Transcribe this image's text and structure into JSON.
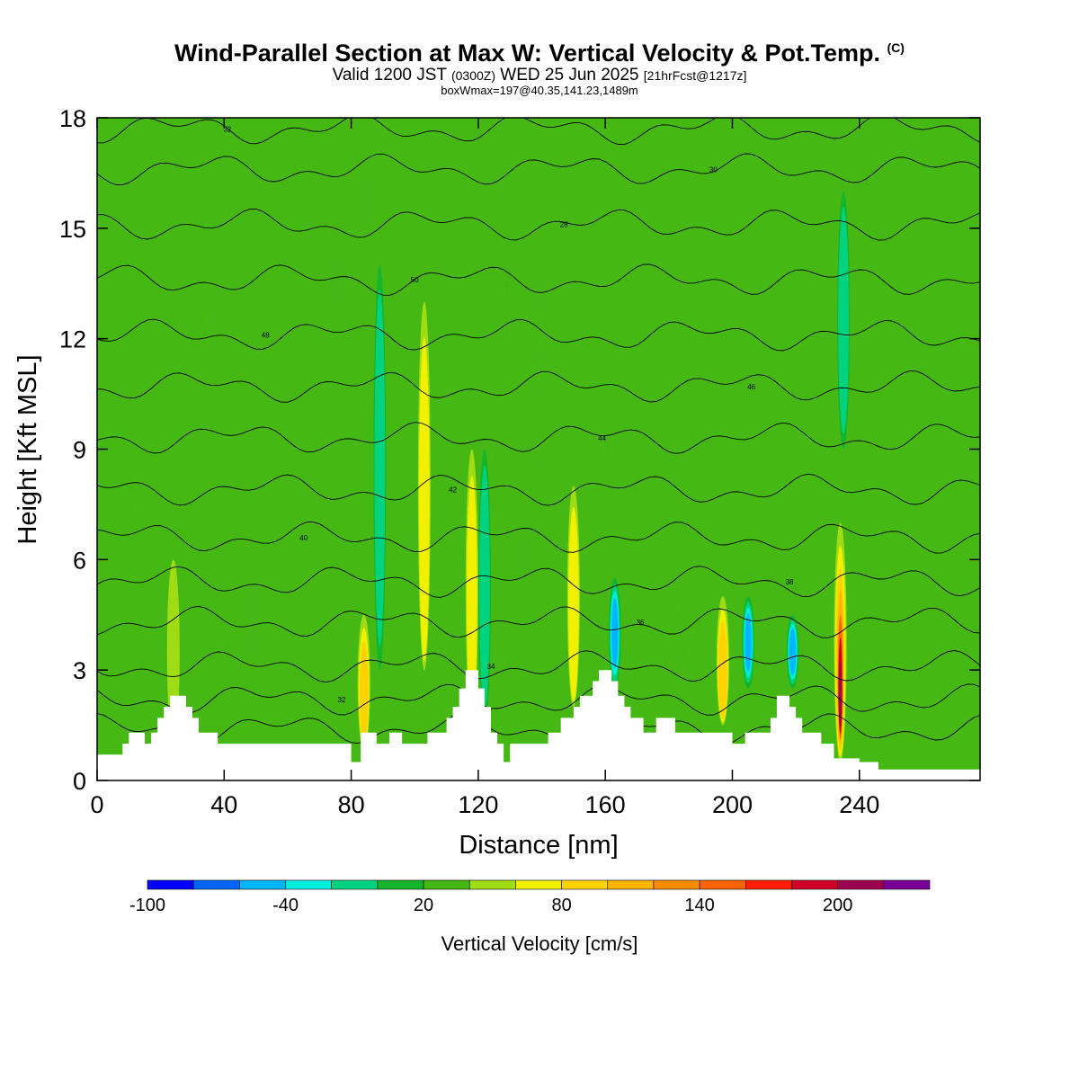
{
  "header": {
    "title": "Wind-Parallel Section at Max W: Vertical Velocity & Pot.Temp.",
    "copyright": "(C)",
    "valid_prefix": "Valid 1200 JST",
    "valid_utc": "(0300Z)",
    "valid_date": "WED 25 Jun 2025",
    "forecast": "[21hrFcst@1217z]",
    "box_info": "boxWmax=197@40.35,141.23,1489m"
  },
  "chart_data": {
    "type": "heatmap",
    "xlabel": "Distance [nm]",
    "ylabel": "Height [Kft MSL]",
    "xlim": [
      0,
      278
    ],
    "ylim": [
      0,
      18
    ],
    "x_ticks": [
      "0",
      "40",
      "80",
      "120",
      "160",
      "200",
      "240"
    ],
    "x_tick_values": [
      0,
      40,
      80,
      120,
      160,
      200,
      240
    ],
    "y_ticks": [
      "0",
      "3",
      "6",
      "9",
      "12",
      "15",
      "18"
    ],
    "y_tick_values": [
      0,
      3,
      6,
      9,
      12,
      15,
      18
    ],
    "background_value_cms": 0,
    "updrafts": [
      {
        "x": 24,
        "zmin": 1.0,
        "zmax": 6.0,
        "w": 20
      },
      {
        "x": 84,
        "zmin": 0.8,
        "zmax": 4.5,
        "w": 60
      },
      {
        "x": 103,
        "zmin": 3.0,
        "zmax": 13.0,
        "w": 40
      },
      {
        "x": 118,
        "zmin": 1.5,
        "zmax": 9.0,
        "w": 40
      },
      {
        "x": 150,
        "zmin": 2.0,
        "zmax": 8.0,
        "w": 40
      },
      {
        "x": 197,
        "zmin": 1.5,
        "zmax": 5.0,
        "w": 60
      },
      {
        "x": 234,
        "zmin": 0.5,
        "zmax": 7.0,
        "w": 197
      }
    ],
    "downdrafts": [
      {
        "x": 89,
        "zmin": 3.0,
        "zmax": 14.0,
        "w": -40
      },
      {
        "x": 122,
        "zmin": 1.5,
        "zmax": 9.0,
        "w": -40
      },
      {
        "x": 163,
        "zmin": 2.5,
        "zmax": 5.5,
        "w": -80
      },
      {
        "x": 205,
        "zmin": 2.5,
        "zmax": 5.0,
        "w": -80
      },
      {
        "x": 219,
        "zmin": 2.5,
        "zmax": 4.5,
        "w": -80
      },
      {
        "x": 235,
        "zmin": 9.0,
        "zmax": 16.0,
        "w": -40
      }
    ],
    "terrain": [
      [
        0,
        0.7
      ],
      [
        8,
        0.7
      ],
      [
        8,
        1.0
      ],
      [
        10,
        1.0
      ],
      [
        10,
        1.3
      ],
      [
        15,
        1.3
      ],
      [
        15,
        1.0
      ],
      [
        17,
        1.0
      ],
      [
        17,
        1.3
      ],
      [
        19,
        1.3
      ],
      [
        19,
        1.7
      ],
      [
        21,
        1.7
      ],
      [
        21,
        2.0
      ],
      [
        23,
        2.0
      ],
      [
        23,
        2.3
      ],
      [
        28,
        2.3
      ],
      [
        28,
        2.0
      ],
      [
        30,
        2.0
      ],
      [
        30,
        1.7
      ],
      [
        32,
        1.7
      ],
      [
        32,
        1.3
      ],
      [
        38,
        1.3
      ],
      [
        38,
        1.0
      ],
      [
        80,
        1.0
      ],
      [
        80,
        0.5
      ],
      [
        83,
        0.5
      ],
      [
        83,
        1.3
      ],
      [
        88,
        1.3
      ],
      [
        88,
        1.0
      ],
      [
        92,
        1.0
      ],
      [
        92,
        1.3
      ],
      [
        96,
        1.3
      ],
      [
        96,
        1.0
      ],
      [
        104,
        1.0
      ],
      [
        104,
        1.3
      ],
      [
        110,
        1.3
      ],
      [
        110,
        1.7
      ],
      [
        112,
        1.7
      ],
      [
        112,
        2.0
      ],
      [
        114,
        2.0
      ],
      [
        114,
        2.5
      ],
      [
        116,
        2.5
      ],
      [
        116,
        3.0
      ],
      [
        120,
        3.0
      ],
      [
        120,
        2.5
      ],
      [
        122,
        2.5
      ],
      [
        122,
        2.0
      ],
      [
        124,
        2.0
      ],
      [
        124,
        1.3
      ],
      [
        126,
        1.3
      ],
      [
        126,
        1.0
      ],
      [
        128,
        1.0
      ],
      [
        128,
        0.5
      ],
      [
        130,
        0.5
      ],
      [
        130,
        1.0
      ],
      [
        142,
        1.0
      ],
      [
        142,
        1.3
      ],
      [
        146,
        1.3
      ],
      [
        146,
        1.7
      ],
      [
        150,
        1.7
      ],
      [
        150,
        2.0
      ],
      [
        152,
        2.0
      ],
      [
        152,
        2.3
      ],
      [
        156,
        2.3
      ],
      [
        156,
        2.7
      ],
      [
        158,
        2.7
      ],
      [
        158,
        3.0
      ],
      [
        162,
        3.0
      ],
      [
        162,
        2.7
      ],
      [
        164,
        2.7
      ],
      [
        164,
        2.3
      ],
      [
        166,
        2.3
      ],
      [
        166,
        2.0
      ],
      [
        168,
        2.0
      ],
      [
        168,
        1.7
      ],
      [
        172,
        1.7
      ],
      [
        172,
        1.3
      ],
      [
        176,
        1.3
      ],
      [
        176,
        1.7
      ],
      [
        182,
        1.7
      ],
      [
        182,
        1.3
      ],
      [
        200,
        1.3
      ],
      [
        200,
        1.0
      ],
      [
        204,
        1.0
      ],
      [
        204,
        1.3
      ],
      [
        212,
        1.3
      ],
      [
        212,
        1.7
      ],
      [
        214,
        1.7
      ],
      [
        214,
        2.3
      ],
      [
        218,
        2.3
      ],
      [
        218,
        2.0
      ],
      [
        220,
        2.0
      ],
      [
        220,
        1.7
      ],
      [
        222,
        1.7
      ],
      [
        222,
        1.3
      ],
      [
        228,
        1.3
      ],
      [
        228,
        1.0
      ],
      [
        232,
        1.0
      ],
      [
        232,
        0.6
      ],
      [
        240,
        0.6
      ],
      [
        240,
        0.5
      ],
      [
        246,
        0.5
      ],
      [
        246,
        0.3
      ],
      [
        278,
        0.3
      ]
    ],
    "theta_contours_c": [
      28,
      30,
      32,
      34,
      36,
      38,
      40,
      42,
      44,
      46,
      48,
      50
    ],
    "contour_label_text": [
      "30",
      "32",
      "34",
      "36",
      "38",
      "40",
      "42",
      "44",
      "46",
      "48",
      "50",
      "28"
    ],
    "colorbar": {
      "label": "Vertical Velocity [cm/s]",
      "tick_labels": [
        "-100",
        "-40",
        "20",
        "80",
        "140",
        "200"
      ],
      "colors": [
        "#0000ff",
        "#0064ff",
        "#00b4ff",
        "#00f0e0",
        "#00d27f",
        "#14b42d",
        "#46b814",
        "#a0dc14",
        "#f0f000",
        "#ffd200",
        "#ffb400",
        "#ff8c00",
        "#ff6400",
        "#ff1e00",
        "#d20028",
        "#a00050",
        "#780096"
      ]
    },
    "grid": false,
    "legend": "bottom"
  }
}
